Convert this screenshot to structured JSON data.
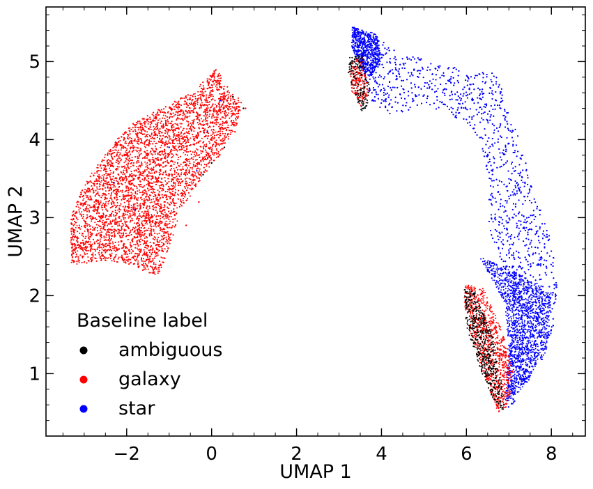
{
  "chart_data": {
    "type": "scatter",
    "title": "",
    "xlabel": "UMAP 1",
    "ylabel": "UMAP 2",
    "xlim": [
      -3.9,
      8.8
    ],
    "ylim": [
      0.2,
      5.7
    ],
    "x_ticks": [
      -2,
      0,
      2,
      4,
      6,
      8
    ],
    "x_tick_labels": [
      "−2",
      "0",
      "2",
      "4",
      "6",
      "8"
    ],
    "y_ticks": [
      1,
      2,
      3,
      4,
      5
    ],
    "y_tick_labels": [
      "1",
      "2",
      "3",
      "4",
      "5"
    ],
    "grid": false,
    "legend": {
      "title": "Baseline label",
      "placement": "lower-left",
      "entries": [
        {
          "label": "ambiguous",
          "color": "#000000"
        },
        {
          "label": "galaxy",
          "color": "#ff0000"
        },
        {
          "label": "star",
          "color": "#0000ff"
        }
      ]
    },
    "series": [
      {
        "name": "galaxy",
        "color": "#ff0000",
        "clusters": [
          {
            "polygon": [
              [
                -3.3,
                2.4
              ],
              [
                -3.35,
                2.75
              ],
              [
                -3.3,
                3.05
              ],
              [
                -3.1,
                3.3
              ],
              [
                -2.8,
                3.6
              ],
              [
                -2.4,
                3.9
              ],
              [
                -1.9,
                4.2
              ],
              [
                -1.2,
                4.4
              ],
              [
                -0.4,
                4.62
              ],
              [
                0.1,
                4.92
              ],
              [
                0.35,
                4.7
              ],
              [
                0.72,
                4.5
              ],
              [
                0.6,
                4.2
              ],
              [
                0.2,
                3.8
              ],
              [
                -0.25,
                3.5
              ],
              [
                -0.7,
                3.1
              ],
              [
                -0.95,
                2.7
              ],
              [
                -1.2,
                2.3
              ],
              [
                -1.4,
                2.25
              ],
              [
                -1.8,
                2.38
              ],
              [
                -2.5,
                2.45
              ],
              [
                -3.2,
                2.4
              ]
            ],
            "count": 7000
          }
        ],
        "scatter_points": [
          [
            -0.9,
            3.9
          ],
          [
            0.8,
            4.4
          ],
          [
            -0.3,
            3.2
          ],
          [
            -0.6,
            2.9
          ],
          [
            0.55,
            4.1
          ]
        ]
      },
      {
        "name": "star",
        "color": "#0000ff",
        "clusters": [
          {
            "polygon": [
              [
                3.35,
                5.45
              ],
              [
                3.9,
                5.3
              ],
              [
                4.5,
                5.1
              ],
              [
                5.5,
                4.95
              ],
              [
                6.2,
                4.88
              ],
              [
                6.7,
                4.85
              ],
              [
                7.0,
                4.45
              ],
              [
                7.3,
                3.9
              ],
              [
                7.6,
                3.3
              ],
              [
                7.95,
                2.8
              ],
              [
                8.15,
                2.2
              ],
              [
                8.05,
                1.6
              ],
              [
                7.7,
                1.05
              ],
              [
                7.2,
                0.65
              ],
              [
                6.95,
                0.55
              ],
              [
                6.85,
                0.75
              ],
              [
                7.0,
                1.2
              ],
              [
                7.1,
                1.7
              ],
              [
                7.05,
                2.2
              ],
              [
                6.7,
                2.6
              ],
              [
                6.5,
                2.9
              ],
              [
                6.55,
                3.4
              ],
              [
                6.4,
                3.8
              ],
              [
                6.15,
                4.15
              ],
              [
                5.7,
                4.3
              ],
              [
                5.0,
                4.45
              ],
              [
                4.3,
                4.3
              ],
              [
                3.8,
                4.45
              ],
              [
                3.55,
                4.9
              ],
              [
                3.35,
                5.2
              ]
            ],
            "count": 4600
          },
          {
            "polygon": [
              [
                3.3,
                5.45
              ],
              [
                3.9,
                5.35
              ],
              [
                4.0,
                5.05
              ],
              [
                3.75,
                4.8
              ],
              [
                3.5,
                4.9
              ],
              [
                3.3,
                5.2
              ]
            ],
            "count": 700
          },
          {
            "polygon": [
              [
                6.3,
                2.5
              ],
              [
                7.2,
                2.3
              ],
              [
                8.0,
                2.0
              ],
              [
                7.9,
                1.3
              ],
              [
                7.3,
                0.8
              ],
              [
                6.9,
                0.6
              ],
              [
                7.0,
                1.3
              ],
              [
                6.9,
                1.9
              ]
            ],
            "count": 1500
          }
        ],
        "scatter_points": [
          [
            -2.3,
            3.45
          ],
          [
            -1.8,
            3.1
          ],
          [
            -0.35,
            3.6
          ],
          [
            -0.1,
            4.1
          ],
          [
            0.2,
            4.5
          ],
          [
            -1.0,
            3.9
          ]
        ]
      },
      {
        "name": "ambiguous",
        "color": "#000000",
        "clusters": [
          {
            "polygon": [
              [
                3.25,
                5.05
              ],
              [
                3.55,
                5.1
              ],
              [
                3.75,
                4.6
              ],
              [
                3.6,
                4.3
              ],
              [
                3.4,
                4.5
              ],
              [
                3.2,
                4.85
              ]
            ],
            "count": 160
          },
          {
            "polygon": [
              [
                5.95,
                2.1
              ],
              [
                6.2,
                2.05
              ],
              [
                6.6,
                1.5
              ],
              [
                6.8,
                1.0
              ],
              [
                6.9,
                0.5
              ],
              [
                6.6,
                0.7
              ],
              [
                6.3,
                1.1
              ],
              [
                6.0,
                1.6
              ]
            ],
            "count": 520
          }
        ],
        "scatter_points": [
          [
            0.75,
            4.4
          ],
          [
            0.0,
            3.7
          ],
          [
            0.3,
            3.9
          ],
          [
            0.5,
            4.55
          ],
          [
            -0.2,
            3.55
          ]
        ]
      },
      {
        "name": "galaxy-right",
        "color": "#ff0000",
        "clusters": [
          {
            "polygon": [
              [
                3.25,
                5.0
              ],
              [
                3.55,
                5.05
              ],
              [
                3.7,
                4.6
              ],
              [
                3.55,
                4.4
              ],
              [
                3.3,
                4.6
              ]
            ],
            "count": 180
          },
          {
            "polygon": [
              [
                5.95,
                2.15
              ],
              [
                6.4,
                2.1
              ],
              [
                6.8,
                1.6
              ],
              [
                7.1,
                1.1
              ],
              [
                7.0,
                0.6
              ],
              [
                6.75,
                0.5
              ],
              [
                6.4,
                1.0
              ],
              [
                6.1,
                1.5
              ],
              [
                5.95,
                1.9
              ]
            ],
            "count": 900
          }
        ],
        "scatter_points": []
      }
    ]
  }
}
